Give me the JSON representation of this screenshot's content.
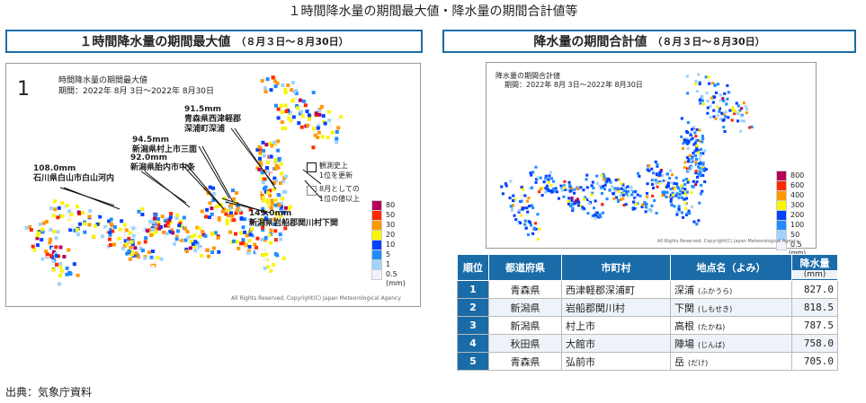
{
  "page_title": "１時間降水量の期間最大値・降水量の期間合計値等",
  "left_panel": {
    "heading": "１時間降水量の期間最大値",
    "period_label": "（８月３日～８月30日）",
    "map_number": "1",
    "map_title": "時間降水量の期間最大値",
    "map_period": "期間：2022年 8月 3日～2022年 8月30日",
    "annotations": [
      {
        "value": "91.5mm",
        "place": "青森県西津軽郡",
        "place2": "深浦町深浦"
      },
      {
        "value": "94.5mm",
        "place": "新潟県村上市三面",
        "place2": ""
      },
      {
        "value": "92.0mm",
        "place": "新潟県胎内市中条",
        "place2": ""
      },
      {
        "value": "108.0mm",
        "place": "石川県白山市白山河内",
        "place2": ""
      },
      {
        "value": "149.0mm",
        "place": "新潟県岩船郡関川村下関",
        "place2": ""
      }
    ],
    "marker_legend": [
      {
        "label1": "観測史上",
        "label2": "1位を更新"
      },
      {
        "label1": "8月としての",
        "label2": "1位の値以上"
      }
    ],
    "scale": {
      "levels": [
        "80",
        "50",
        "30",
        "20",
        "10",
        "5",
        "1",
        "0.5"
      ],
      "colors": [
        "#b4005a",
        "#ff2800",
        "#ff9900",
        "#faf500",
        "#0041ff",
        "#218cff",
        "#a0d2ff",
        "#f2f2ff"
      ],
      "unit": "(mm)"
    },
    "copyright": "All Rights Reserved, Copyright(C) Japan Meteorological Agency"
  },
  "right_panel": {
    "heading": "降水量の期間合計値",
    "period_label": "（８月３日～８月30日）",
    "map_title": "降水量の期間合計値",
    "map_period": "期間：2022年 8月 3日～2022年 8月30日",
    "scale": {
      "levels": [
        "800",
        "600",
        "400",
        "300",
        "200",
        "100",
        "50",
        "0.5"
      ],
      "colors": [
        "#b4005a",
        "#ff2800",
        "#ff9900",
        "#faf500",
        "#0041ff",
        "#218cff",
        "#a0d2ff",
        "#f2f2ff"
      ],
      "unit": "(mm)"
    },
    "copyright": "All Rights Reserved, Copyright(C) Japan Meteorological Agency",
    "table": {
      "headers": [
        "順位",
        "都道府県",
        "市町村",
        "地点名（よみ）",
        "降水量"
      ],
      "unit": "(mm)",
      "rows": [
        {
          "rank": "1",
          "pref": "青森県",
          "city": "西津軽郡深浦町",
          "place": "深浦",
          "yomi": "(ふかうら)",
          "value": "827.0"
        },
        {
          "rank": "2",
          "pref": "新潟県",
          "city": "岩船郡関川村",
          "place": "下関",
          "yomi": "(しもせき)",
          "value": "818.5"
        },
        {
          "rank": "3",
          "pref": "新潟県",
          "city": "村上市",
          "place": "高根",
          "yomi": "(たかね)",
          "value": "787.5"
        },
        {
          "rank": "4",
          "pref": "秋田県",
          "city": "大館市",
          "place": "陣場",
          "yomi": "(じんば)",
          "value": "758.0"
        },
        {
          "rank": "5",
          "pref": "青森県",
          "city": "弘前市",
          "place": "岳",
          "yomi": "(だけ)",
          "value": "705.0"
        }
      ]
    }
  },
  "source": "出典：気象庁資料"
}
